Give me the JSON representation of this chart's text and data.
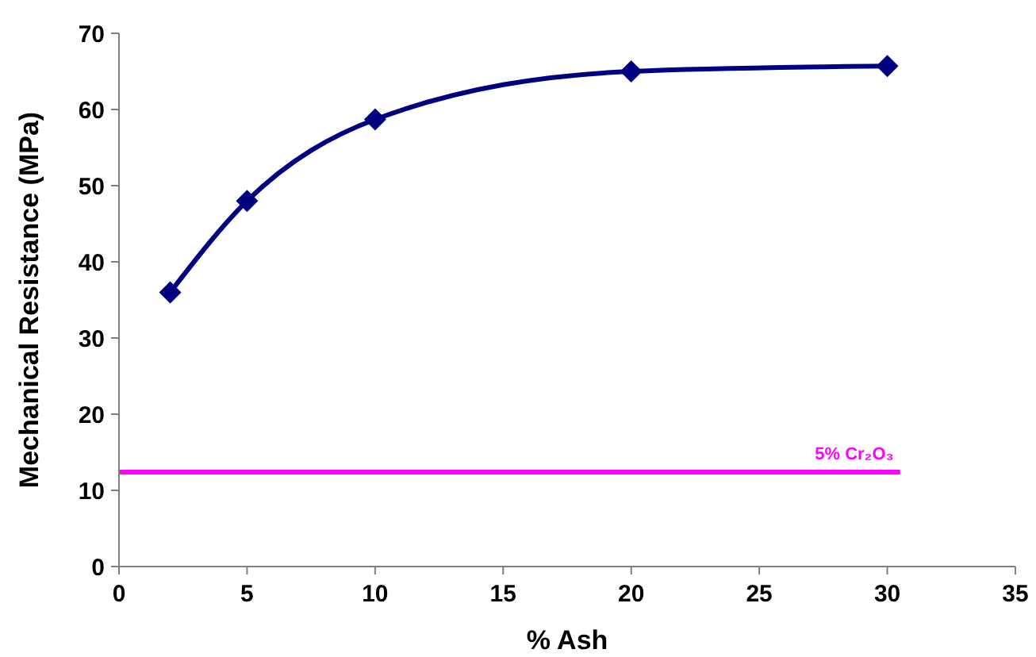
{
  "chart_data": {
    "type": "line",
    "xlabel": "% Ash",
    "ylabel": "Mechanical Resistance (MPa)",
    "x": [
      2,
      5,
      10,
      20,
      30
    ],
    "xlim": [
      0,
      35
    ],
    "xticks": [
      0,
      5,
      10,
      15,
      20,
      25,
      30,
      35
    ],
    "ylim": [
      0,
      70
    ],
    "yticks": [
      0,
      10,
      20,
      30,
      40,
      50,
      60,
      70
    ],
    "grid": false,
    "series": [
      {
        "color": "#000080",
        "values": [
          36,
          48,
          58.7,
          65,
          65.7
        ],
        "marker": "diamond"
      },
      {
        "name": "5% Cr₂O₃",
        "color": "#ff00ff",
        "x": [
          0,
          30.5
        ],
        "values": [
          12.4,
          12.4
        ],
        "marker": "none"
      }
    ]
  }
}
